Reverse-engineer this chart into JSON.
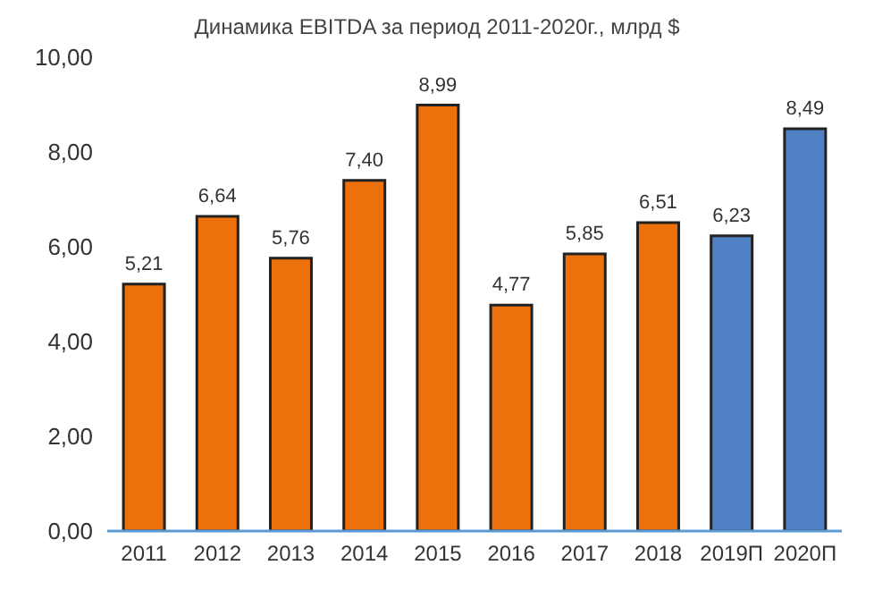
{
  "chart_data": {
    "type": "bar",
    "title": "Динамика EBITDA за период 2011-2020г.,  млрд $",
    "categories": [
      "2011",
      "2012",
      "2013",
      "2014",
      "2015",
      "2016",
      "2017",
      "2018",
      "2019П",
      "2020П"
    ],
    "values": [
      5.21,
      6.64,
      5.76,
      7.4,
      8.99,
      4.77,
      5.85,
      6.51,
      6.23,
      8.49
    ],
    "colors": [
      "#ec700c",
      "#ec700c",
      "#ec700c",
      "#ec700c",
      "#ec700c",
      "#ec700c",
      "#ec700c",
      "#ec700c",
      "#4f81c4",
      "#4f81c4"
    ],
    "value_labels": [
      "5,21",
      "6,64",
      "5,76",
      "7,40",
      "8,99",
      "4,77",
      "5,85",
      "6,51",
      "6,23",
      "8,49"
    ],
    "ylim": [
      0,
      10
    ],
    "yticks": [
      {
        "value": 0,
        "label": "0,00"
      },
      {
        "value": 2,
        "label": "2,00"
      },
      {
        "value": 4,
        "label": "4,00"
      },
      {
        "value": 6,
        "label": "6,00"
      },
      {
        "value": 8,
        "label": "8,00"
      },
      {
        "value": 10,
        "label": "10,00"
      }
    ],
    "grid": false,
    "legend": false
  }
}
